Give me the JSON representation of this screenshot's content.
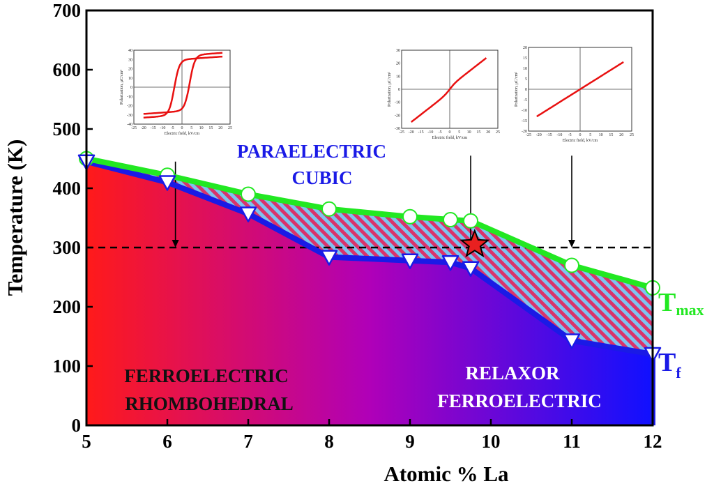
{
  "chart_data": {
    "type": "area",
    "xlabel": "Atomic % La",
    "ylabel": "Temperature (K)",
    "xlim": [
      5,
      12
    ],
    "ylim": [
      0,
      700
    ],
    "xticks": [
      "5",
      "6",
      "7",
      "8",
      "9",
      "10",
      "11",
      "12"
    ],
    "yticks": [
      "0",
      "100",
      "200",
      "300",
      "400",
      "500",
      "600",
      "700"
    ],
    "reference_line": {
      "y": 300,
      "style": "dashed"
    },
    "series": [
      {
        "name": "T_max",
        "label_main": "T",
        "label_sub": "max",
        "color": "#22e822",
        "marker": "open-circle",
        "points": [
          [
            5,
            450
          ],
          [
            6,
            422
          ],
          [
            7,
            390
          ],
          [
            8,
            365
          ],
          [
            9,
            352
          ],
          [
            9.5,
            347
          ],
          [
            9.75,
            345
          ],
          [
            11,
            270
          ],
          [
            12,
            232
          ]
        ]
      },
      {
        "name": "T_f",
        "label_main": "T",
        "label_sub": "f",
        "color": "#1a1ae6",
        "marker": "open-triangle-down",
        "points": [
          [
            5,
            445
          ],
          [
            6,
            410
          ],
          [
            7,
            357
          ],
          [
            8,
            284
          ],
          [
            9,
            278
          ],
          [
            9.5,
            275
          ],
          [
            9.75,
            265
          ],
          [
            11,
            143
          ],
          [
            12,
            120
          ]
        ]
      }
    ],
    "highlight_point": {
      "x": 9.8,
      "y": 305,
      "marker": "star",
      "color": "#e82020"
    },
    "arrows": [
      {
        "x": 6.1,
        "from_y": 445,
        "to_y": 300
      },
      {
        "x": 9.75,
        "from_y": 455,
        "to_y": 300
      },
      {
        "x": 11,
        "from_y": 455,
        "to_y": 300
      }
    ],
    "regions": [
      {
        "id": "paraelectric",
        "lines": [
          "PARAELECTRIC",
          "CUBIC"
        ],
        "color": "#1a1ae6"
      },
      {
        "id": "ferroelectric",
        "lines": [
          "FERROELECTRIC",
          "RHOMBOHEDRAL"
        ],
        "color": "#111111"
      },
      {
        "id": "relaxor",
        "lines": [
          "RELAXOR",
          "FERROELECTRIC"
        ],
        "color": "#ffffff"
      }
    ],
    "gradient_colors": [
      "#ff1a1a",
      "#b000b8",
      "#1010ff"
    ],
    "hatch_colors": [
      "#7ec3f0",
      "#d9336b"
    ],
    "insets": [
      {
        "id": "inset-1",
        "type": "hysteresis-loop",
        "xlabel": "Electric field, kV/cm",
        "ylabel": "Polarization, μC/cm²",
        "xlim": [
          -25,
          25
        ],
        "ylim": [
          -40,
          40
        ],
        "xticks": [
          "-25",
          "-20",
          "-15",
          "-10",
          "-5",
          "0",
          "5",
          "10",
          "15",
          "20",
          "25"
        ],
        "yticks": [
          "-40",
          "-30",
          "-20",
          "-10",
          "0",
          "10",
          "20",
          "30",
          "40"
        ],
        "color": "#e81010"
      },
      {
        "id": "inset-2",
        "type": "slim-loop",
        "xlabel": "Electric field, kV/cm",
        "ylabel": "Polarization, μC/cm²",
        "xlim": [
          -25,
          25
        ],
        "ylim": [
          -30,
          30
        ],
        "xticks": [
          "-25",
          "-20",
          "-15",
          "-10",
          "-5",
          "0",
          "5",
          "10",
          "15",
          "20",
          "25"
        ],
        "yticks": [
          "-30",
          "-20",
          "-10",
          "0",
          "10",
          "20",
          "30"
        ],
        "color": "#e81010"
      },
      {
        "id": "inset-3",
        "type": "linear",
        "xlabel": "Electric field, kV/cm",
        "ylabel": "Polarization, μC/cm²",
        "xlim": [
          -25,
          25
        ],
        "ylim": [
          -20,
          20
        ],
        "xticks": [
          "-25",
          "-20",
          "-15",
          "-10",
          "-5",
          "0",
          "5",
          "10",
          "15",
          "20",
          "25"
        ],
        "yticks": [
          "-20",
          "-15",
          "-10",
          "-5",
          "0",
          "5",
          "10",
          "15",
          "20"
        ],
        "color": "#e81010"
      }
    ]
  }
}
